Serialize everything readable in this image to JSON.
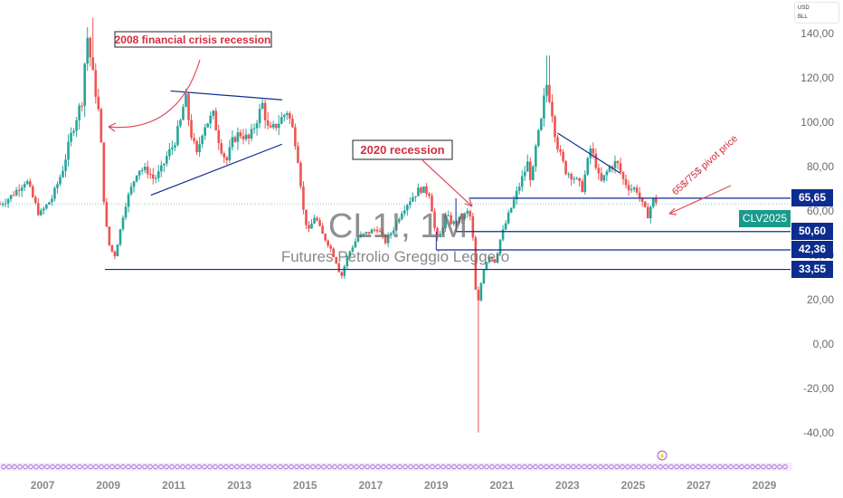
{
  "chart_data": {
    "type": "candlestick",
    "symbol": "CL1!, 1M",
    "subtitle": "Futures Petrolio Greggio Leggero",
    "current_price_label": "CLV2025",
    "unit_labels": [
      "USD",
      "BLL"
    ],
    "y_axis": {
      "range": [
        -45,
        155
      ],
      "ticks": [
        -40,
        -20,
        0,
        20,
        40,
        60,
        80,
        100,
        120,
        140
      ],
      "tick_labels": [
        "-40,00",
        "-20,00",
        "0,00",
        "20,00",
        "40,00",
        "60,00",
        "80,00",
        "100,00",
        "120,00",
        "140,00"
      ]
    },
    "x_axis": {
      "range": [
        2005.7,
        2029.8
      ],
      "ticks": [
        "2007",
        "2009",
        "2011",
        "2013",
        "2015",
        "2017",
        "2019",
        "2021",
        "2023",
        "2025",
        "2027",
        "2029"
      ]
    },
    "price_levels": [
      {
        "value": 65.65,
        "label": "65,65",
        "from": 2020.0
      },
      {
        "value": 50.6,
        "label": "50,60",
        "from": 2019.6
      },
      {
        "value": 42.36,
        "label": "42,36",
        "from": 2019.0
      },
      {
        "value": 33.55,
        "label": "33,55",
        "from": 2008.9
      }
    ],
    "annotations": [
      {
        "text": "2008 financial crisis recession",
        "boxed": true
      },
      {
        "text": "2020 recession",
        "boxed": true
      },
      {
        "text": "65$/75$ pivot price",
        "boxed": false
      }
    ],
    "trendlines": [
      {
        "name": "upper-triangle",
        "from": [
          2010.9,
          114
        ],
        "to": [
          2014.3,
          110
        ]
      },
      {
        "name": "lower-triangle",
        "from": [
          2010.3,
          67
        ],
        "to": [
          2014.3,
          90
        ]
      },
      {
        "name": "descending-2022",
        "from": [
          2022.7,
          95
        ],
        "to": [
          2024.6,
          77
        ]
      }
    ],
    "anchors": [
      [
        2005.7,
        63
      ],
      [
        2006.0,
        66
      ],
      [
        2006.5,
        74
      ],
      [
        2006.9,
        58
      ],
      [
        2007.3,
        66
      ],
      [
        2007.6,
        78
      ],
      [
        2007.9,
        96
      ],
      [
        2008.2,
        110
      ],
      [
        2008.35,
        140
      ],
      [
        2008.5,
        124
      ],
      [
        2008.6,
        115
      ],
      [
        2008.75,
        100
      ],
      [
        2008.85,
        68
      ],
      [
        2008.95,
        52
      ],
      [
        2009.05,
        43
      ],
      [
        2009.2,
        40
      ],
      [
        2009.35,
        50
      ],
      [
        2009.5,
        62
      ],
      [
        2009.7,
        70
      ],
      [
        2009.9,
        79
      ],
      [
        2010.2,
        78
      ],
      [
        2010.4,
        74
      ],
      [
        2010.6,
        78
      ],
      [
        2010.8,
        85
      ],
      [
        2011.0,
        90
      ],
      [
        2011.2,
        100
      ],
      [
        2011.35,
        112
      ],
      [
        2011.5,
        96
      ],
      [
        2011.7,
        85
      ],
      [
        2011.9,
        98
      ],
      [
        2012.2,
        103
      ],
      [
        2012.4,
        90
      ],
      [
        2012.6,
        82
      ],
      [
        2012.8,
        92
      ],
      [
        2013.0,
        95
      ],
      [
        2013.3,
        92
      ],
      [
        2013.5,
        100
      ],
      [
        2013.7,
        108
      ],
      [
        2013.9,
        95
      ],
      [
        2014.2,
        100
      ],
      [
        2014.45,
        105
      ],
      [
        2014.6,
        98
      ],
      [
        2014.75,
        88
      ],
      [
        2014.85,
        75
      ],
      [
        2014.95,
        60
      ],
      [
        2015.1,
        50
      ],
      [
        2015.3,
        58
      ],
      [
        2015.5,
        50
      ],
      [
        2015.75,
        44
      ],
      [
        2015.95,
        37
      ],
      [
        2016.1,
        30
      ],
      [
        2016.3,
        40
      ],
      [
        2016.6,
        48
      ],
      [
        2016.9,
        50
      ],
      [
        2017.2,
        52
      ],
      [
        2017.45,
        46
      ],
      [
        2017.7,
        52
      ],
      [
        2017.95,
        60
      ],
      [
        2018.2,
        65
      ],
      [
        2018.5,
        70
      ],
      [
        2018.8,
        68
      ],
      [
        2018.95,
        52
      ],
      [
        2019.05,
        46
      ],
      [
        2019.3,
        58
      ],
      [
        2019.5,
        54
      ],
      [
        2019.8,
        57
      ],
      [
        2020.0,
        60
      ],
      [
        2020.1,
        52
      ],
      [
        2020.2,
        24
      ],
      [
        2020.3,
        18
      ],
      [
        2020.4,
        32
      ],
      [
        2020.6,
        40
      ],
      [
        2020.8,
        37
      ],
      [
        2020.95,
        47
      ],
      [
        2021.2,
        58
      ],
      [
        2021.5,
        70
      ],
      [
        2021.8,
        82
      ],
      [
        2021.9,
        72
      ],
      [
        2022.05,
        90
      ],
      [
        2022.2,
        100
      ],
      [
        2022.35,
        118
      ],
      [
        2022.5,
        108
      ],
      [
        2022.65,
        92
      ],
      [
        2022.8,
        84
      ],
      [
        2022.95,
        78
      ],
      [
        2023.2,
        75
      ],
      [
        2023.45,
        70
      ],
      [
        2023.7,
        88
      ],
      [
        2023.85,
        82
      ],
      [
        2024.0,
        72
      ],
      [
        2024.3,
        80
      ],
      [
        2024.5,
        82
      ],
      [
        2024.7,
        74
      ],
      [
        2024.9,
        70
      ],
      [
        2025.1,
        70
      ],
      [
        2025.3,
        62
      ],
      [
        2025.45,
        58
      ],
      [
        2025.6,
        65
      ],
      [
        2025.75,
        64
      ]
    ],
    "grid": false,
    "legend": "none"
  },
  "timeline": {
    "marker_label": "⚡"
  }
}
